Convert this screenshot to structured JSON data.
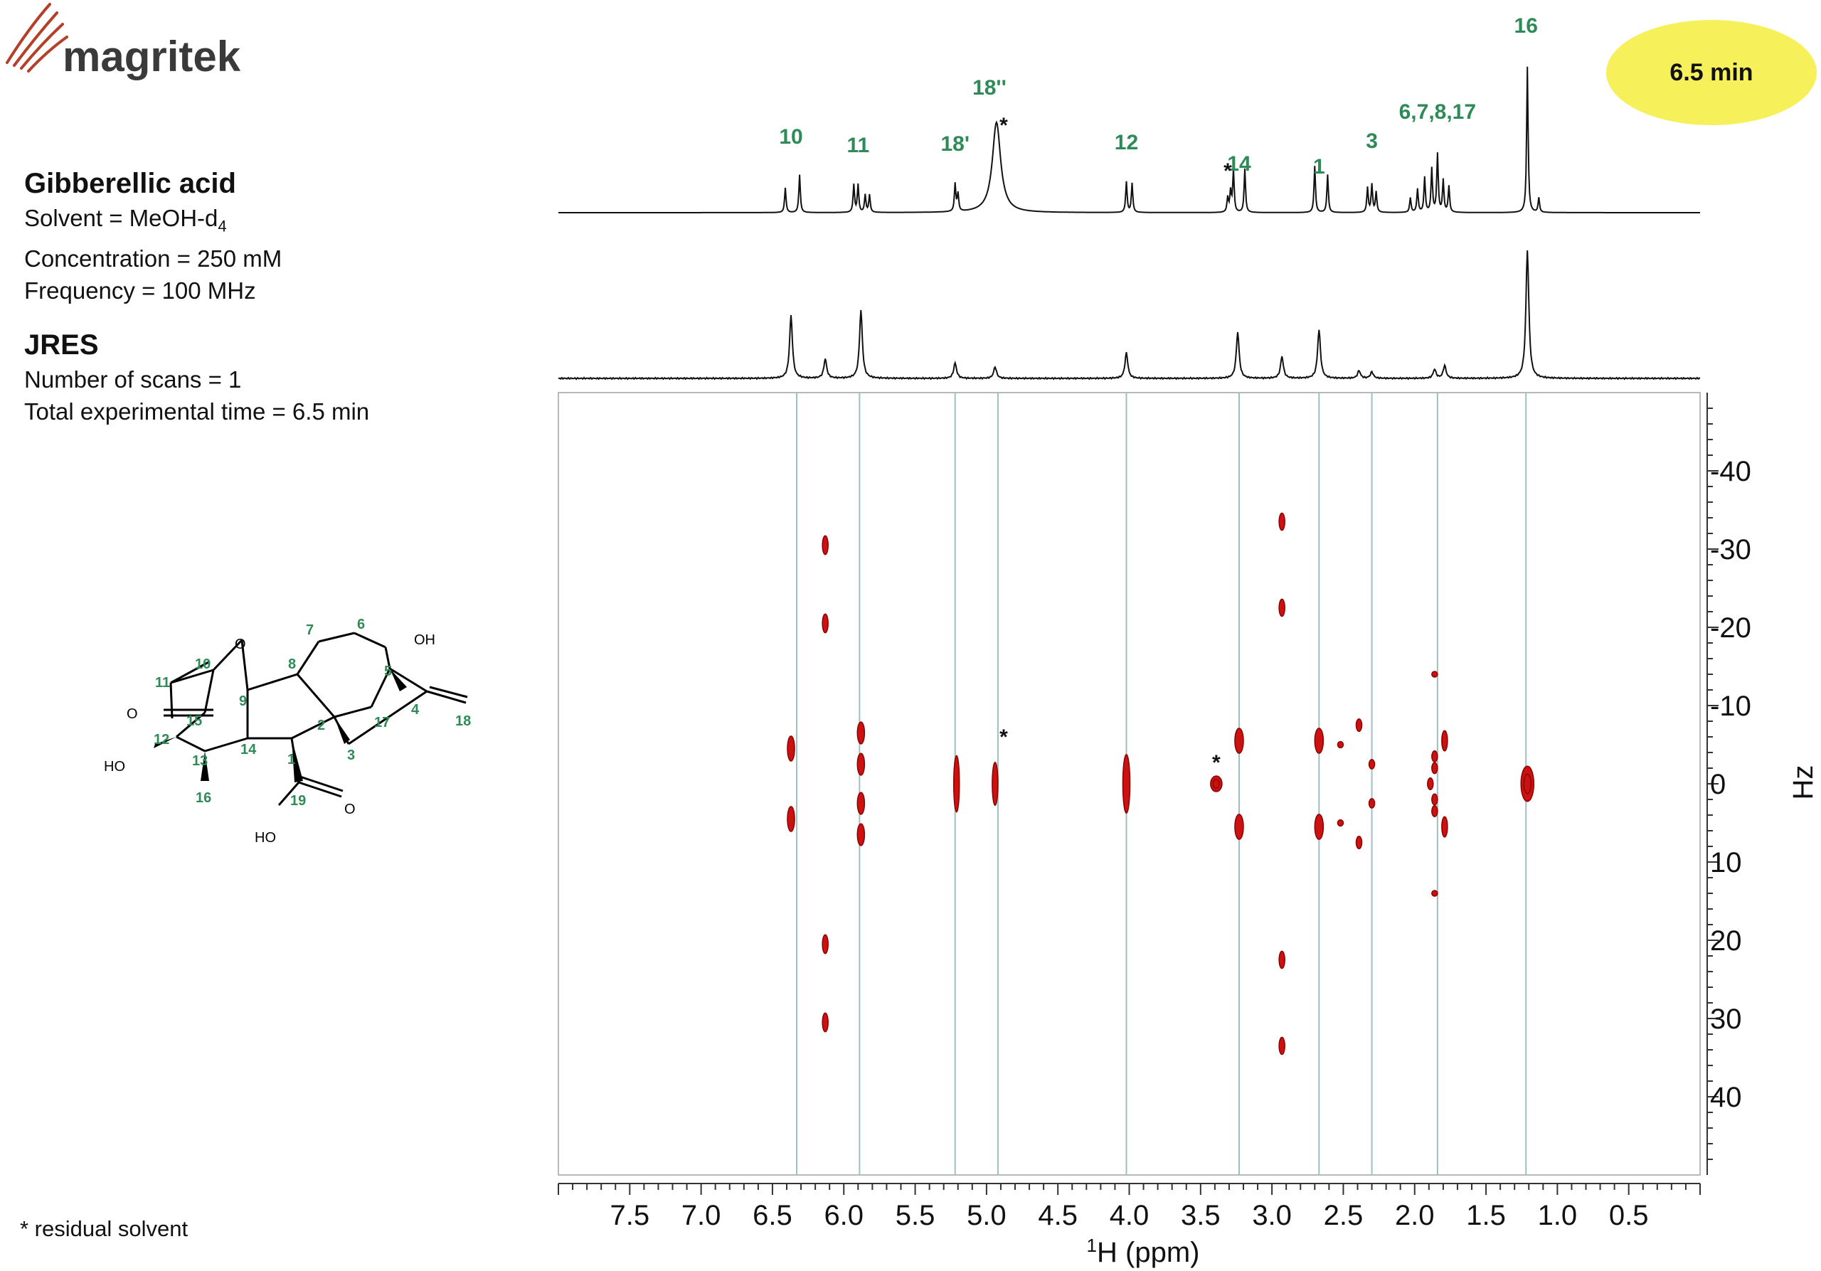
{
  "brand": {
    "name": "magritek"
  },
  "sample": {
    "title": "Gibberellic acid",
    "solvent": "Solvent = MeOH-d",
    "solvent_sub": "4",
    "concentration": "Concentration = 250 mM",
    "frequency": "Frequency = 100 MHz"
  },
  "experiment": {
    "title": "JRES",
    "scans": "Number of scans = 1",
    "time": "Total experimental time = 6.5 min"
  },
  "badge": {
    "text": "6.5 min",
    "color": "#f6f05a"
  },
  "footnote": "* residual solvent",
  "colors": {
    "peak_label": "#2e8b57",
    "contour": "#cc1111",
    "guide": "#9fbfbf"
  },
  "molecule": {
    "atom_labels": [
      "7",
      "6",
      "5",
      "OH",
      "10",
      "O",
      "11",
      "O",
      "8",
      "9",
      "15",
      "17",
      "4",
      "18",
      "12",
      "14",
      "2",
      "HO",
      "13",
      "1",
      "3",
      "19",
      "O",
      "16",
      "HO"
    ]
  },
  "chart_data": {
    "type": "2D-JRES contour",
    "xlabel_sup": "1",
    "xlabel": "H (ppm)",
    "ylabel": "Hz",
    "xlim": [
      8.0,
      0.0
    ],
    "ylim": [
      -50,
      50
    ],
    "x_ticks": [
      "7.5",
      "7.0",
      "6.5",
      "6.0",
      "5.5",
      "5.0",
      "4.5",
      "4.0",
      "3.5",
      "3.0",
      "2.5",
      "2.0",
      "1.5",
      "1.0",
      "0.5"
    ],
    "x_tick_values": [
      7.5,
      7.0,
      6.5,
      6.0,
      5.5,
      5.0,
      4.5,
      4.0,
      3.5,
      3.0,
      2.5,
      2.0,
      1.5,
      1.0,
      0.5
    ],
    "y_ticks": [
      "-40",
      "-30",
      "-20",
      "-10",
      "0",
      "10",
      "20",
      "30",
      "40"
    ],
    "y_tick_values": [
      -40,
      -30,
      -20,
      -10,
      0,
      10,
      20,
      30,
      40
    ],
    "guide_lines_ppm": [
      6.33,
      5.89,
      5.22,
      4.92,
      4.02,
      3.23,
      2.67,
      2.3,
      1.84,
      1.22
    ],
    "peak_labels": [
      {
        "label": "10",
        "ppm": 6.37
      },
      {
        "label": "11",
        "ppm": 5.9
      },
      {
        "label": "18'",
        "ppm": 5.22
      },
      {
        "label": "18''",
        "ppm": 4.98
      },
      {
        "label": "12",
        "ppm": 4.02
      },
      {
        "label": "14",
        "ppm": 3.23
      },
      {
        "label": "1",
        "ppm": 2.67
      },
      {
        "label": "3",
        "ppm": 2.3
      },
      {
        "label": "6,7,8,17",
        "ppm": 1.84
      },
      {
        "label": "16",
        "ppm": 1.22
      }
    ],
    "solvent_markers": [
      {
        "label": "*",
        "ppm": 4.88,
        "trace": "1D"
      },
      {
        "label": "*",
        "ppm": 3.31,
        "trace": "1D"
      },
      {
        "label": "*",
        "ppm": 4.88,
        "hz": -6
      },
      {
        "label": "*",
        "ppm": 3.39,
        "hz": 2
      }
    ],
    "trace_1d_peaks": [
      {
        "ppm": 6.41,
        "h": 0.17
      },
      {
        "ppm": 6.31,
        "h": 0.26
      },
      {
        "ppm": 5.93,
        "h": 0.19
      },
      {
        "ppm": 5.9,
        "h": 0.19
      },
      {
        "ppm": 5.85,
        "h": 0.12
      },
      {
        "ppm": 5.82,
        "h": 0.12
      },
      {
        "ppm": 5.22,
        "h": 0.19
      },
      {
        "ppm": 5.2,
        "h": 0.12
      },
      {
        "ppm": 4.93,
        "h": 0.62,
        "w": 0.035
      },
      {
        "ppm": 4.02,
        "h": 0.21
      },
      {
        "ppm": 3.98,
        "h": 0.2
      },
      {
        "ppm": 3.31,
        "h": 0.1
      },
      {
        "ppm": 3.29,
        "h": 0.14
      },
      {
        "ppm": 3.27,
        "h": 0.29
      },
      {
        "ppm": 3.19,
        "h": 0.3
      },
      {
        "ppm": 2.7,
        "h": 0.32
      },
      {
        "ppm": 2.61,
        "h": 0.26
      },
      {
        "ppm": 2.33,
        "h": 0.17
      },
      {
        "ppm": 2.3,
        "h": 0.19
      },
      {
        "ppm": 2.27,
        "h": 0.14
      },
      {
        "ppm": 2.03,
        "h": 0.1
      },
      {
        "ppm": 1.98,
        "h": 0.16
      },
      {
        "ppm": 1.93,
        "h": 0.24
      },
      {
        "ppm": 1.88,
        "h": 0.3
      },
      {
        "ppm": 1.84,
        "h": 0.4
      },
      {
        "ppm": 1.8,
        "h": 0.22
      },
      {
        "ppm": 1.76,
        "h": 0.18
      },
      {
        "ppm": 1.21,
        "h": 1.0
      },
      {
        "ppm": 1.13,
        "h": 0.1
      }
    ],
    "trace_projection_peaks": [
      {
        "ppm": 6.37,
        "h": 0.49
      },
      {
        "ppm": 6.13,
        "h": 0.15
      },
      {
        "ppm": 5.88,
        "h": 0.53
      },
      {
        "ppm": 5.22,
        "h": 0.12
      },
      {
        "ppm": 4.94,
        "h": 0.09
      },
      {
        "ppm": 4.02,
        "h": 0.2
      },
      {
        "ppm": 3.24,
        "h": 0.36
      },
      {
        "ppm": 2.93,
        "h": 0.17
      },
      {
        "ppm": 2.67,
        "h": 0.38
      },
      {
        "ppm": 2.39,
        "h": 0.06
      },
      {
        "ppm": 2.3,
        "h": 0.05
      },
      {
        "ppm": 1.86,
        "h": 0.07
      },
      {
        "ppm": 1.79,
        "h": 0.1
      },
      {
        "ppm": 1.21,
        "h": 1.0
      }
    ],
    "contours": [
      {
        "ppm": 6.37,
        "hz": -4.5,
        "w": 0.05,
        "h": 3.2
      },
      {
        "ppm": 6.37,
        "hz": 4.5,
        "w": 0.05,
        "h": 3.2
      },
      {
        "ppm": 6.13,
        "hz": -30.5,
        "w": 0.03,
        "h": 2.4
      },
      {
        "ppm": 6.13,
        "hz": -20.5,
        "w": 0.03,
        "h": 2.4
      },
      {
        "ppm": 6.13,
        "hz": 20.5,
        "w": 0.03,
        "h": 2.4
      },
      {
        "ppm": 6.13,
        "hz": 30.5,
        "w": 0.03,
        "h": 2.4
      },
      {
        "ppm": 5.88,
        "hz": -6.5,
        "w": 0.05,
        "h": 2.8
      },
      {
        "ppm": 5.88,
        "hz": -2.5,
        "w": 0.05,
        "h": 2.8
      },
      {
        "ppm": 5.88,
        "hz": 2.5,
        "w": 0.05,
        "h": 2.8
      },
      {
        "ppm": 5.88,
        "hz": 6.5,
        "w": 0.05,
        "h": 2.8
      },
      {
        "ppm": 5.21,
        "hz": 0,
        "w": 0.04,
        "h": 7.2
      },
      {
        "ppm": 4.94,
        "hz": 0,
        "w": 0.035,
        "h": 5.5
      },
      {
        "ppm": 4.02,
        "hz": 0,
        "w": 0.05,
        "h": 7.5
      },
      {
        "ppm": 3.39,
        "hz": 0,
        "w": 0.08,
        "h": 2
      },
      {
        "ppm": 3.23,
        "hz": -5.5,
        "w": 0.06,
        "h": 3.2
      },
      {
        "ppm": 3.23,
        "hz": 5.5,
        "w": 0.06,
        "h": 3.2
      },
      {
        "ppm": 2.93,
        "hz": -33.5,
        "w": 0.03,
        "h": 2.2
      },
      {
        "ppm": 2.93,
        "hz": -22.5,
        "w": 0.03,
        "h": 2.2
      },
      {
        "ppm": 2.93,
        "hz": 22.5,
        "w": 0.03,
        "h": 2.2
      },
      {
        "ppm": 2.93,
        "hz": 33.5,
        "w": 0.03,
        "h": 2.2
      },
      {
        "ppm": 2.67,
        "hz": -5.5,
        "w": 0.06,
        "h": 3.2
      },
      {
        "ppm": 2.67,
        "hz": 5.5,
        "w": 0.06,
        "h": 3.2
      },
      {
        "ppm": 2.52,
        "hz": -5,
        "w": 0.012,
        "h": 0.8
      },
      {
        "ppm": 2.52,
        "hz": 5,
        "w": 0.012,
        "h": 0.8
      },
      {
        "ppm": 2.39,
        "hz": -7.5,
        "w": 0.02,
        "h": 1.6
      },
      {
        "ppm": 2.39,
        "hz": 7.5,
        "w": 0.02,
        "h": 1.6
      },
      {
        "ppm": 2.3,
        "hz": -2.5,
        "w": 0.012,
        "h": 1.2
      },
      {
        "ppm": 2.3,
        "hz": 2.5,
        "w": 0.012,
        "h": 1.2
      },
      {
        "ppm": 1.89,
        "hz": 0,
        "w": 0.02,
        "h": 1.5
      },
      {
        "ppm": 1.86,
        "hz": -14,
        "w": 0.008,
        "h": 0.5
      },
      {
        "ppm": 1.86,
        "hz": 14,
        "w": 0.008,
        "h": 0.5
      },
      {
        "ppm": 1.86,
        "hz": -3.5,
        "w": 0.02,
        "h": 1.4
      },
      {
        "ppm": 1.86,
        "hz": -2,
        "w": 0.02,
        "h": 1.4
      },
      {
        "ppm": 1.86,
        "hz": 2,
        "w": 0.02,
        "h": 1.4
      },
      {
        "ppm": 1.86,
        "hz": 3.5,
        "w": 0.02,
        "h": 1.4
      },
      {
        "ppm": 1.79,
        "hz": -5.5,
        "w": 0.035,
        "h": 2.6
      },
      {
        "ppm": 1.79,
        "hz": 5.5,
        "w": 0.035,
        "h": 2.6
      },
      {
        "ppm": 1.21,
        "hz": 0,
        "w": 0.09,
        "h": 4.5
      }
    ]
  }
}
